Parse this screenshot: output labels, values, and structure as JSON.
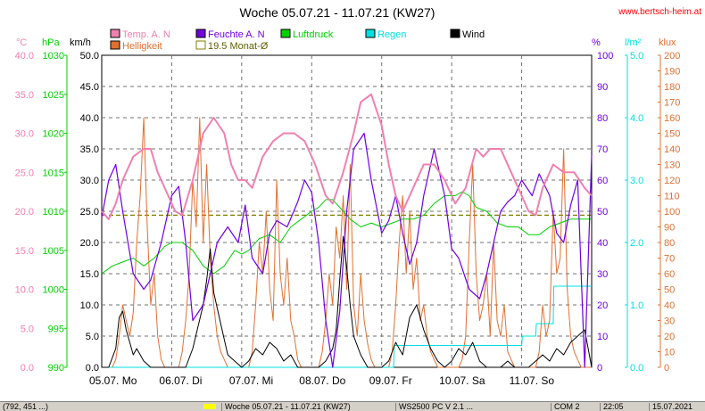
{
  "site": "www.bertsch-heim.at",
  "colors": {
    "temp": "#f080b0",
    "humidity": "#7000e0",
    "pressure": "#00d000",
    "rain": "#00e0e0",
    "wind": "#000000",
    "brightness": "#e07030",
    "avg": "#808000",
    "grid": "#707070"
  },
  "chart_data": {
    "type": "line",
    "title": "Woche 05.07.21 - 11.07.21 (KW27)",
    "x_labels": [
      "05.07. Mo",
      "06.07. Di",
      "07.07. Mi",
      "08.07. Do",
      "09.07. Fr",
      "10.07. Sa",
      "11.07. So"
    ],
    "x_range_days": [
      0,
      7
    ],
    "grid": true,
    "axes": {
      "temp": {
        "unit": "°C",
        "range": [
          0,
          40
        ],
        "ticks": [
          "0.0",
          "5.0",
          "10.0",
          "15.0",
          "20.0",
          "25.0",
          "30.0",
          "35.0",
          "40.0"
        ]
      },
      "pressure": {
        "unit": "hPa",
        "range": [
          990,
          1030
        ],
        "ticks": [
          "990",
          "995",
          "1000",
          "1005",
          "1010",
          "1015",
          "1020",
          "1025",
          "1030"
        ]
      },
      "wind": {
        "unit": "km/h",
        "range": [
          0,
          50
        ],
        "ticks": [
          "0.0",
          "5.0",
          "10.0",
          "15.0",
          "20.0",
          "25.0",
          "30.0",
          "35.0",
          "40.0",
          "45.0",
          "50.0"
        ]
      },
      "humidity": {
        "unit": "%",
        "range": [
          0,
          100
        ],
        "ticks": [
          "0",
          "10",
          "20",
          "30",
          "40",
          "50",
          "60",
          "70",
          "80",
          "90",
          "100"
        ]
      },
      "rain": {
        "unit": "l/m²",
        "range": [
          0,
          5
        ],
        "ticks": [
          "0.0",
          "1.0",
          "2.0",
          "3.0",
          "4.0",
          "5.0"
        ]
      },
      "brightness": {
        "unit": "klux",
        "range": [
          0,
          200
        ],
        "ticks": [
          "0",
          "10",
          "20",
          "30",
          "40",
          "50",
          "60",
          "70",
          "80",
          "90",
          "100",
          "110",
          "120",
          "130",
          "140",
          "150",
          "160",
          "170",
          "180",
          "190",
          "200"
        ]
      }
    },
    "legend": [
      {
        "key": "temp",
        "label": "Temp. A. N"
      },
      {
        "key": "humidity",
        "label": "Feuchte A. N"
      },
      {
        "key": "pressure",
        "label": "Luftdruck"
      },
      {
        "key": "rain",
        "label": "Regen"
      },
      {
        "key": "wind",
        "label": "Wind"
      },
      {
        "key": "brightness",
        "label": "Helligkeit"
      },
      {
        "key": "avg",
        "label": "19.5 Monat-Ø"
      }
    ],
    "reference_lines": [
      {
        "axis": "temp",
        "value": 19.5,
        "label": "19.5 Monat-Ø"
      }
    ],
    "series": [
      {
        "key": "temp",
        "axis": "temp",
        "name": "Temp. A. N",
        "x": [
          0,
          0.1,
          0.2,
          0.3,
          0.45,
          0.6,
          0.7,
          0.8,
          0.95,
          1.05,
          1.15,
          1.3,
          1.45,
          1.6,
          1.75,
          1.85,
          1.95,
          2.05,
          2.15,
          2.3,
          2.45,
          2.6,
          2.75,
          2.9,
          3.05,
          3.2,
          3.3,
          3.45,
          3.6,
          3.7,
          3.85,
          4.0,
          4.1,
          4.2,
          4.3,
          4.45,
          4.6,
          4.75,
          4.9,
          5.05,
          5.2,
          5.35,
          5.45,
          5.55,
          5.7,
          5.85,
          6.0,
          6.1,
          6.2,
          6.3,
          6.45,
          6.6,
          6.75,
          6.9,
          7.0
        ],
        "y": [
          20,
          19,
          21,
          24,
          27,
          28,
          28,
          25,
          22,
          20,
          19.5,
          24,
          30,
          32,
          30,
          26,
          24,
          24,
          23,
          27,
          29,
          30,
          30,
          29,
          26,
          22,
          21,
          25,
          30,
          34,
          35,
          31,
          26,
          22,
          20,
          23,
          26,
          26,
          24,
          21,
          23,
          28,
          27,
          28,
          28,
          25,
          22,
          20,
          19.5,
          23,
          26,
          25,
          25,
          23,
          22
        ]
      },
      {
        "key": "humidity",
        "axis": "humidity",
        "name": "Feuchte A. N",
        "x": [
          0,
          0.1,
          0.2,
          0.3,
          0.45,
          0.6,
          0.7,
          0.85,
          1.0,
          1.1,
          1.2,
          1.3,
          1.45,
          1.55,
          1.65,
          1.8,
          1.95,
          2.05,
          2.15,
          2.3,
          2.4,
          2.5,
          2.65,
          2.8,
          2.9,
          3.0,
          3.1,
          3.2,
          3.3,
          3.4,
          3.5,
          3.6,
          3.75,
          3.85,
          4.0,
          4.1,
          4.2,
          4.3,
          4.4,
          4.5,
          4.6,
          4.75,
          4.9,
          5.0,
          5.1,
          5.25,
          5.4,
          5.5,
          5.6,
          5.7,
          5.8,
          5.9,
          6.0,
          6.15,
          6.25,
          6.4,
          6.5,
          6.6,
          6.7,
          6.8,
          6.9,
          7.0
        ],
        "y": [
          48,
          60,
          65,
          50,
          30,
          25,
          28,
          40,
          55,
          58,
          40,
          15,
          20,
          30,
          40,
          45,
          40,
          52,
          35,
          30,
          43,
          47,
          45,
          53,
          60,
          56,
          40,
          15,
          0,
          18,
          50,
          70,
          75,
          60,
          43,
          47,
          55,
          43,
          33,
          40,
          55,
          70,
          55,
          38,
          35,
          25,
          22,
          30,
          40,
          50,
          53,
          55,
          60,
          55,
          62,
          55,
          43,
          40,
          52,
          60,
          0,
          68
        ]
      },
      {
        "key": "pressure",
        "axis": "pressure",
        "name": "Luftdruck",
        "x": [
          0,
          0.15,
          0.3,
          0.45,
          0.6,
          0.75,
          0.9,
          1.0,
          1.15,
          1.3,
          1.45,
          1.6,
          1.75,
          1.9,
          2.0,
          2.1,
          2.25,
          2.4,
          2.55,
          2.7,
          2.85,
          3.0,
          3.1,
          3.2,
          3.3,
          3.45,
          3.55,
          3.7,
          3.85,
          4.0,
          4.15,
          4.3,
          4.45,
          4.6,
          4.75,
          4.9,
          5.05,
          5.15,
          5.25,
          5.35,
          5.5,
          5.65,
          5.8,
          5.95,
          6.1,
          6.25,
          6.4,
          6.55,
          6.7,
          6.85,
          7.0
        ],
        "y": [
          1002,
          1003,
          1003.5,
          1004,
          1003,
          1004,
          1005.5,
          1006,
          1006,
          1005,
          1003,
          1002,
          1003,
          1005,
          1004.5,
          1005,
          1006.5,
          1007,
          1006,
          1008,
          1009,
          1010,
          1010.5,
          1011.5,
          1011.5,
          1010,
          1009,
          1008,
          1008.5,
          1008,
          1008.5,
          1009,
          1009,
          1009.5,
          1011,
          1012,
          1012,
          1012.5,
          1012,
          1010.5,
          1010,
          1008.5,
          1008,
          1008,
          1007,
          1007,
          1008,
          1008.5,
          1009,
          1009,
          1009
        ]
      },
      {
        "key": "rain",
        "axis": "rain",
        "name": "Regen",
        "x": [
          0,
          4.17,
          4.18,
          6.0,
          6.01,
          6.2,
          6.21,
          6.45,
          6.46,
          7.0
        ],
        "y": [
          0,
          0,
          0.35,
          0.35,
          0.5,
          0.5,
          0.7,
          0.7,
          1.3,
          1.3
        ]
      },
      {
        "key": "wind",
        "axis": "wind",
        "name": "Wind",
        "x": [
          0,
          0.1,
          0.2,
          0.25,
          0.3,
          0.35,
          0.4,
          0.45,
          0.5,
          0.6,
          0.7,
          0.8,
          0.9,
          1.0,
          1.1,
          1.2,
          1.3,
          1.45,
          1.5,
          1.55,
          1.6,
          1.7,
          1.8,
          1.9,
          2.0,
          2.1,
          2.2,
          2.3,
          2.4,
          2.5,
          2.6,
          2.7,
          2.8,
          2.9,
          3.0,
          3.1,
          3.2,
          3.3,
          3.35,
          3.4,
          3.45,
          3.5,
          3.55,
          3.6,
          3.7,
          3.8,
          3.9,
          4.0,
          4.1,
          4.2,
          4.3,
          4.4,
          4.5,
          4.6,
          4.7,
          4.8,
          4.9,
          5.0,
          5.1,
          5.2,
          5.3,
          5.4,
          5.5,
          5.6,
          5.7,
          5.8,
          5.9,
          6.0,
          6.1,
          6.2,
          6.3,
          6.4,
          6.5,
          6.6,
          6.7,
          6.8,
          6.9,
          7.0
        ],
        "y": [
          0,
          0,
          3,
          8,
          9,
          6,
          4,
          2,
          3,
          1,
          0,
          0,
          0,
          0,
          0,
          0,
          3,
          10,
          14,
          19,
          12,
          7,
          2,
          1,
          0,
          1,
          3,
          2,
          4,
          3,
          1,
          2,
          0,
          0,
          0,
          0,
          1,
          3,
          6,
          14,
          21,
          16,
          10,
          5,
          2,
          0,
          0,
          0,
          1,
          4,
          2,
          8,
          10,
          6,
          3,
          1,
          0,
          1,
          3,
          2,
          4,
          1,
          0,
          0,
          0,
          1,
          0,
          0,
          0,
          1,
          2,
          1,
          3,
          2,
          4,
          5,
          6,
          0
        ]
      },
      {
        "key": "brightness",
        "axis": "brightness",
        "name": "Helligkeit",
        "x": [
          0,
          0.05,
          0.1,
          0.15,
          0.2,
          0.25,
          0.3,
          0.35,
          0.4,
          0.45,
          0.5,
          0.55,
          0.6,
          0.65,
          0.7,
          0.75,
          0.8,
          0.85,
          0.9,
          1.0,
          1.1,
          1.15,
          1.2,
          1.25,
          1.3,
          1.35,
          1.4,
          1.45,
          1.5,
          1.55,
          1.6,
          1.65,
          1.7,
          1.75,
          1.8,
          1.85,
          1.9,
          2.0,
          2.1,
          2.15,
          2.2,
          2.25,
          2.3,
          2.35,
          2.4,
          2.45,
          2.5,
          2.55,
          2.6,
          2.65,
          2.7,
          2.75,
          2.8,
          2.85,
          2.9,
          3.0,
          3.1,
          3.15,
          3.2,
          3.25,
          3.3,
          3.35,
          3.4,
          3.45,
          3.5,
          3.55,
          3.6,
          3.65,
          3.7,
          3.75,
          3.8,
          3.85,
          3.9,
          4.0,
          4.1,
          4.15,
          4.2,
          4.25,
          4.3,
          4.35,
          4.4,
          4.45,
          4.5,
          4.55,
          4.6,
          4.65,
          4.7,
          4.75,
          4.8,
          4.85,
          4.9,
          5.0,
          5.1,
          5.15,
          5.2,
          5.25,
          5.3,
          5.35,
          5.4,
          5.45,
          5.5,
          5.55,
          5.6,
          5.65,
          5.7,
          5.75,
          5.8,
          5.85,
          5.9,
          6.0,
          6.1,
          6.15,
          6.2,
          6.25,
          6.3,
          6.35,
          6.4,
          6.45,
          6.5,
          6.55,
          6.6,
          6.65,
          6.7,
          6.75,
          6.8,
          6.85,
          6.9,
          7.0
        ],
        "y": [
          0,
          0,
          0,
          0,
          5,
          20,
          40,
          30,
          20,
          35,
          80,
          110,
          160,
          90,
          40,
          60,
          20,
          5,
          0,
          0,
          0,
          10,
          30,
          60,
          120,
          90,
          160,
          80,
          130,
          70,
          40,
          20,
          10,
          5,
          0,
          0,
          0,
          0,
          0,
          10,
          40,
          80,
          60,
          100,
          50,
          30,
          120,
          60,
          40,
          70,
          30,
          20,
          5,
          0,
          0,
          0,
          0,
          10,
          30,
          60,
          40,
          90,
          70,
          110,
          50,
          130,
          40,
          20,
          60,
          30,
          15,
          5,
          0,
          0,
          0,
          10,
          40,
          80,
          110,
          60,
          100,
          50,
          70,
          30,
          40,
          20,
          10,
          5,
          0,
          0,
          0,
          0,
          0,
          5,
          20,
          80,
          130,
          60,
          30,
          40,
          60,
          20,
          80,
          30,
          20,
          40,
          10,
          5,
          0,
          0,
          0,
          0,
          0,
          10,
          40,
          20,
          30,
          100,
          60,
          70,
          140,
          50,
          20,
          10,
          5,
          0,
          0,
          0
        ]
      }
    ]
  },
  "status": {
    "cell1": "(792, 451 ...)",
    "cell2": "Woche 05.07.21 - 11.07.21 (KW27)",
    "cell3": "WS2500 PC V 2.1 ...",
    "cell4": "COM 2",
    "cell5": "22:05",
    "cell6": "15.07.2021"
  }
}
